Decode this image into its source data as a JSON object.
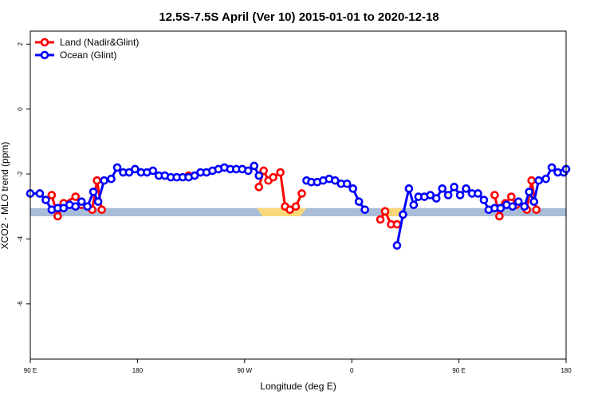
{
  "chart_data": {
    "type": "line",
    "title": "12.5S-7.5S April (Ver 10)   2015-01-01 to 2020-12-18",
    "xlabel": "Longitude (deg E)",
    "ylabel": "XCO2 - MLO trend (ppm)",
    "x_tick_values": [
      90,
      180,
      270,
      360,
      450,
      540
    ],
    "x_tick_labels": [
      "90 E",
      "180",
      "90 W",
      "0",
      "90 E",
      "180"
    ],
    "xlim": [
      90,
      540
    ],
    "y_tick_values": [
      2,
      0,
      -2,
      -4,
      -6
    ],
    "y_tick_labels": [
      "2",
      "0",
      "-2",
      "-4",
      "-6"
    ],
    "ylim": [
      -7.7,
      2.4
    ],
    "grid": false,
    "legend_position": "top-left",
    "colors": {
      "land": "#ff0000",
      "ocean": "#0000ff",
      "ocean_band": "#a8bcd8",
      "land_band": "#f8d878"
    },
    "reference_band": {
      "y_low": -3.3,
      "y_high": -3.05,
      "land_segments": [
        [
          280,
          322
        ],
        [
          384,
          402
        ]
      ]
    },
    "series": [
      {
        "name": "Land (Nadir&Glint)",
        "key": "land",
        "segments": [
          [
            [
              108,
              -2.65
            ],
            [
              113,
              -3.3
            ],
            [
              118,
              -2.9
            ],
            [
              128,
              -2.7
            ],
            [
              133,
              -2.95
            ]
          ],
          [
            [
              142,
              -3.1
            ],
            [
              146,
              -2.2
            ],
            [
              150,
              -3.1
            ]
          ],
          [
            [
              223,
              -2.05
            ]
          ],
          [
            [
              282,
              -2.4
            ],
            [
              286,
              -1.9
            ],
            [
              290,
              -2.2
            ],
            [
              294,
              -2.1
            ],
            [
              300,
              -1.95
            ],
            [
              304,
              -3.0
            ],
            [
              308,
              -3.1
            ],
            [
              313,
              -3.0
            ],
            [
              318,
              -2.6
            ]
          ],
          [
            [
              384,
              -3.4
            ],
            [
              388,
              -3.15
            ],
            [
              393,
              -3.55
            ],
            [
              398,
              -3.55
            ]
          ],
          [
            [
              480,
              -2.65
            ],
            [
              484,
              -3.3
            ],
            [
              489,
              -2.9
            ],
            [
              494,
              -2.7
            ],
            [
              498,
              -2.95
            ]
          ],
          [
            [
              507,
              -3.1
            ],
            [
              511,
              -2.2
            ],
            [
              515,
              -3.1
            ]
          ]
        ]
      },
      {
        "name": "Ocean (Glint)",
        "key": "ocean",
        "segments": [
          [
            [
              90,
              -2.6
            ],
            [
              98,
              -2.6
            ],
            [
              103,
              -2.8
            ],
            [
              108,
              -3.1
            ],
            [
              113,
              -3.05
            ],
            [
              118,
              -3.05
            ],
            [
              123,
              -2.95
            ],
            [
              128,
              -3.0
            ],
            [
              133,
              -2.85
            ],
            [
              138,
              -3.0
            ],
            [
              143,
              -2.55
            ],
            [
              147,
              -2.85
            ],
            [
              152,
              -2.2
            ],
            [
              158,
              -2.15
            ],
            [
              163,
              -1.8
            ],
            [
              168,
              -1.95
            ],
            [
              173,
              -1.95
            ],
            [
              178,
              -1.85
            ],
            [
              183,
              -1.95
            ],
            [
              188,
              -1.95
            ],
            [
              193,
              -1.9
            ],
            [
              198,
              -2.05
            ],
            [
              203,
              -2.05
            ],
            [
              208,
              -2.1
            ],
            [
              213,
              -2.1
            ],
            [
              218,
              -2.1
            ],
            [
              223,
              -2.1
            ],
            [
              228,
              -2.05
            ],
            [
              233,
              -1.95
            ],
            [
              238,
              -1.95
            ],
            [
              243,
              -1.9
            ],
            [
              248,
              -1.85
            ],
            [
              253,
              -1.8
            ],
            [
              258,
              -1.85
            ],
            [
              263,
              -1.85
            ],
            [
              268,
              -1.85
            ],
            [
              273,
              -1.9
            ],
            [
              278,
              -1.75
            ],
            [
              282,
              -2.05
            ]
          ],
          [
            [
              322,
              -2.2
            ],
            [
              326,
              -2.25
            ],
            [
              331,
              -2.25
            ],
            [
              336,
              -2.2
            ],
            [
              341,
              -2.15
            ],
            [
              346,
              -2.2
            ],
            [
              351,
              -2.3
            ],
            [
              356,
              -2.3
            ],
            [
              361,
              -2.45
            ],
            [
              366,
              -2.85
            ],
            [
              371,
              -3.1
            ]
          ],
          [
            [
              398,
              -4.2
            ],
            [
              403,
              -3.25
            ],
            [
              408,
              -2.45
            ],
            [
              412,
              -2.95
            ],
            [
              416,
              -2.7
            ],
            [
              421,
              -2.7
            ],
            [
              426,
              -2.65
            ],
            [
              431,
              -2.75
            ],
            [
              436,
              -2.45
            ],
            [
              441,
              -2.65
            ],
            [
              446,
              -2.4
            ],
            [
              451,
              -2.65
            ],
            [
              456,
              -2.45
            ],
            [
              461,
              -2.6
            ],
            [
              466,
              -2.6
            ],
            [
              471,
              -2.8
            ],
            [
              475,
              -3.1
            ],
            [
              480,
              -3.05
            ],
            [
              485,
              -3.05
            ],
            [
              490,
              -2.95
            ],
            [
              495,
              -3.0
            ],
            [
              500,
              -2.85
            ],
            [
              505,
              -3.0
            ],
            [
              509,
              -2.55
            ],
            [
              513,
              -2.85
            ],
            [
              517,
              -2.2
            ],
            [
              523,
              -2.15
            ],
            [
              528,
              -1.8
            ],
            [
              533,
              -1.95
            ],
            [
              538,
              -1.95
            ],
            [
              540,
              -1.85
            ]
          ]
        ]
      }
    ]
  }
}
